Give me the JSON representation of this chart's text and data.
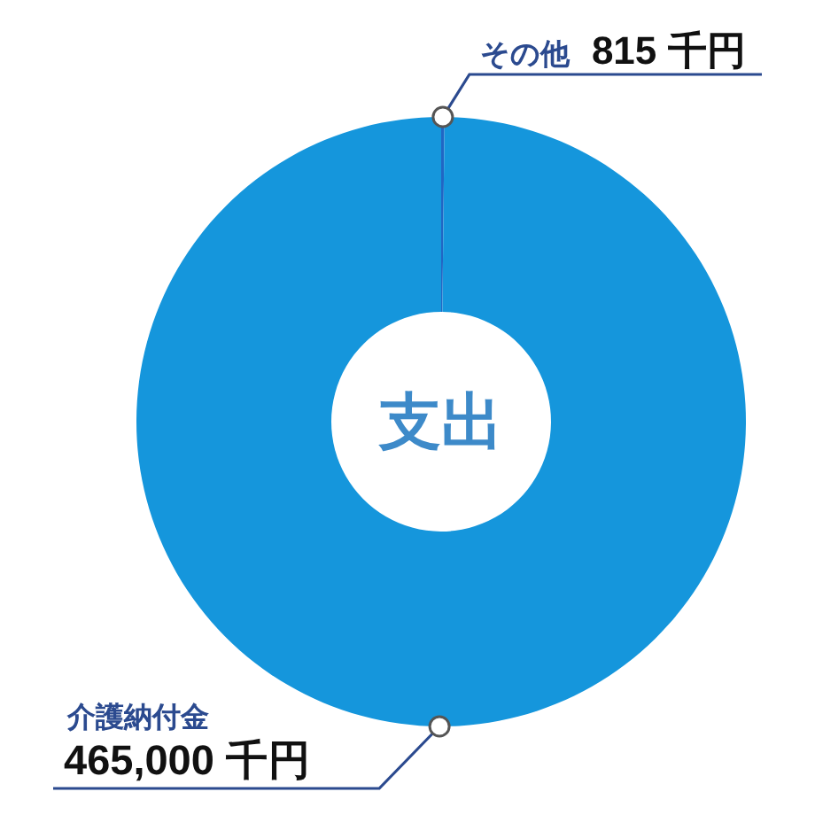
{
  "chart_data": {
    "type": "donut",
    "title": "支出",
    "categories": [
      "その他",
      "介護納付金"
    ],
    "values": [
      815,
      465000
    ],
    "colors": [
      "#2166c4",
      "#1596dc"
    ],
    "value_labels": [
      "815 千円",
      "465,000 千円"
    ]
  }
}
